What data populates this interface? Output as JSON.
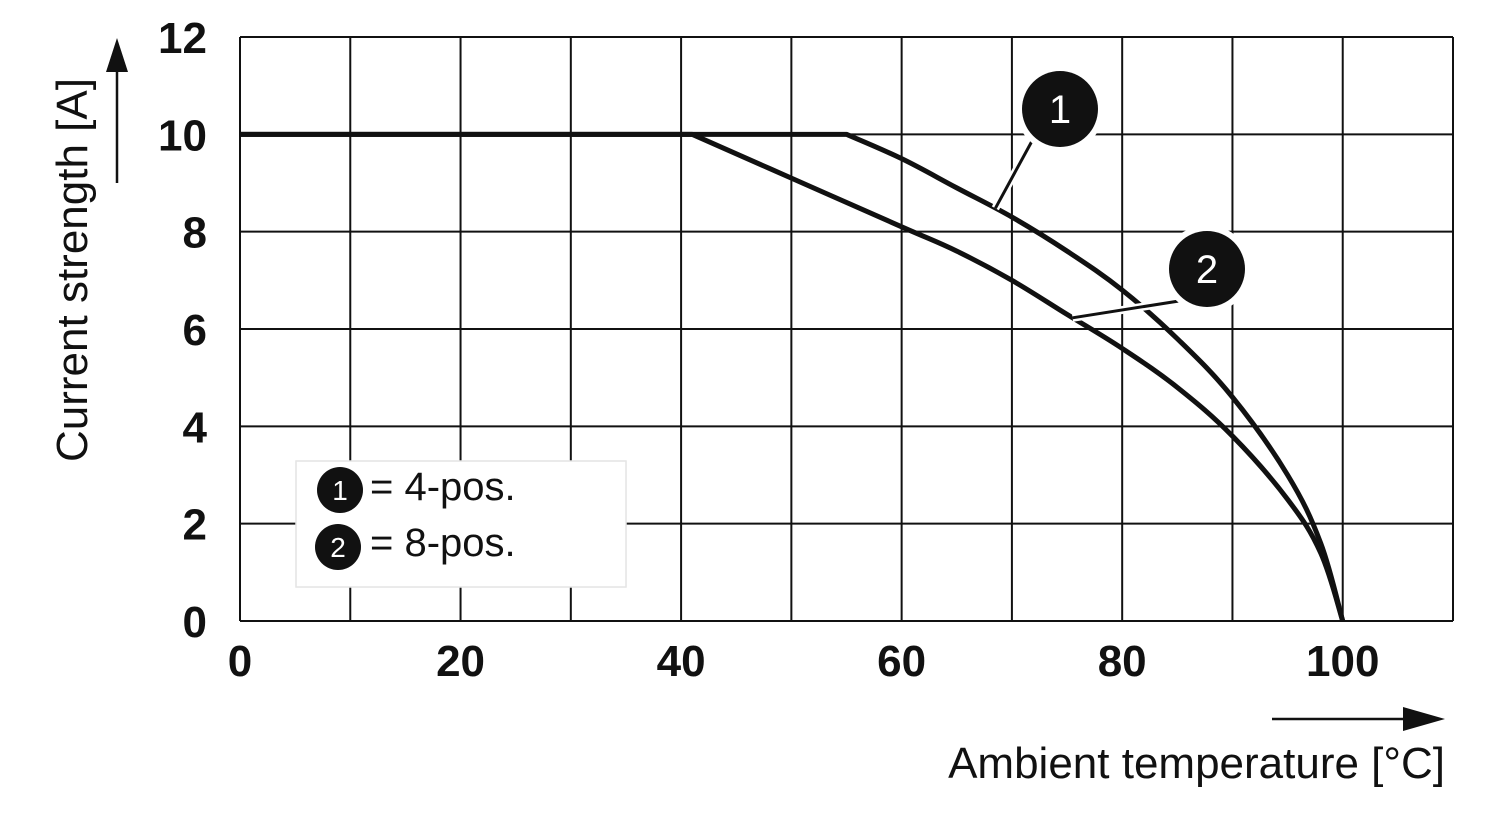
{
  "chart_data": {
    "type": "line",
    "xlabel": "Ambient temperature [°C]",
    "ylabel": "Current strength [A]",
    "xlim": [
      0,
      110
    ],
    "ylim": [
      0,
      12
    ],
    "x_ticks": [
      0,
      20,
      40,
      60,
      80,
      100
    ],
    "y_ticks": [
      0,
      2,
      4,
      6,
      8,
      10,
      12
    ],
    "x_grid_step": 10,
    "y_grid_step": 2,
    "grid": true,
    "legend_position": "bottom-left",
    "series": [
      {
        "name": "1",
        "legend_label": "= 4-pos.",
        "marker_label": "1",
        "x": [
          0,
          55,
          60,
          65,
          70,
          75,
          80,
          85,
          90,
          95,
          98,
          100
        ],
        "y": [
          10,
          10,
          9.5,
          8.9,
          8.3,
          7.6,
          6.8,
          5.8,
          4.6,
          3.0,
          1.6,
          0
        ]
      },
      {
        "name": "2",
        "legend_label": "= 8-pos.",
        "marker_label": "2",
        "x": [
          0,
          41,
          50,
          60,
          65,
          70,
          75,
          80,
          85,
          90,
          95,
          98,
          100
        ],
        "y": [
          10,
          10,
          9.1,
          8.1,
          7.6,
          7.0,
          6.3,
          5.6,
          4.8,
          3.8,
          2.5,
          1.4,
          0
        ]
      }
    ]
  }
}
